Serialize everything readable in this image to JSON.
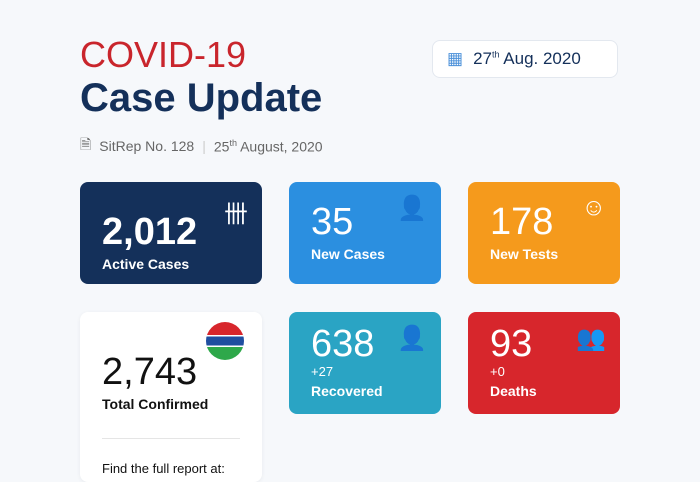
{
  "title_line1": "COVID-19",
  "title_line2": "Case Update",
  "date": {
    "day": "27",
    "suffix": "th",
    "rest": " Aug. 2020"
  },
  "meta": {
    "sitrep": "SitRep No. 128",
    "day": "25",
    "suffix": "th",
    "rest": " August, 2020"
  },
  "cards": {
    "active": {
      "value": "2,012",
      "label": "Active Cases",
      "color": "#14305a"
    },
    "new_cases": {
      "value": "35",
      "label": "New Cases",
      "color": "#2b8fe0"
    },
    "new_tests": {
      "value": "178",
      "label": "New Tests",
      "color": "#f59a1c"
    },
    "total": {
      "value": "2,743",
      "label": "Total Confirmed",
      "footer": "Find the full report at:"
    },
    "recovered": {
      "value": "638",
      "change": "+27",
      "label": "Recovered",
      "color": "#2aa4c4"
    },
    "deaths": {
      "value": "93",
      "change": "+0",
      "label": "Deaths",
      "color": "#d7262c"
    }
  }
}
